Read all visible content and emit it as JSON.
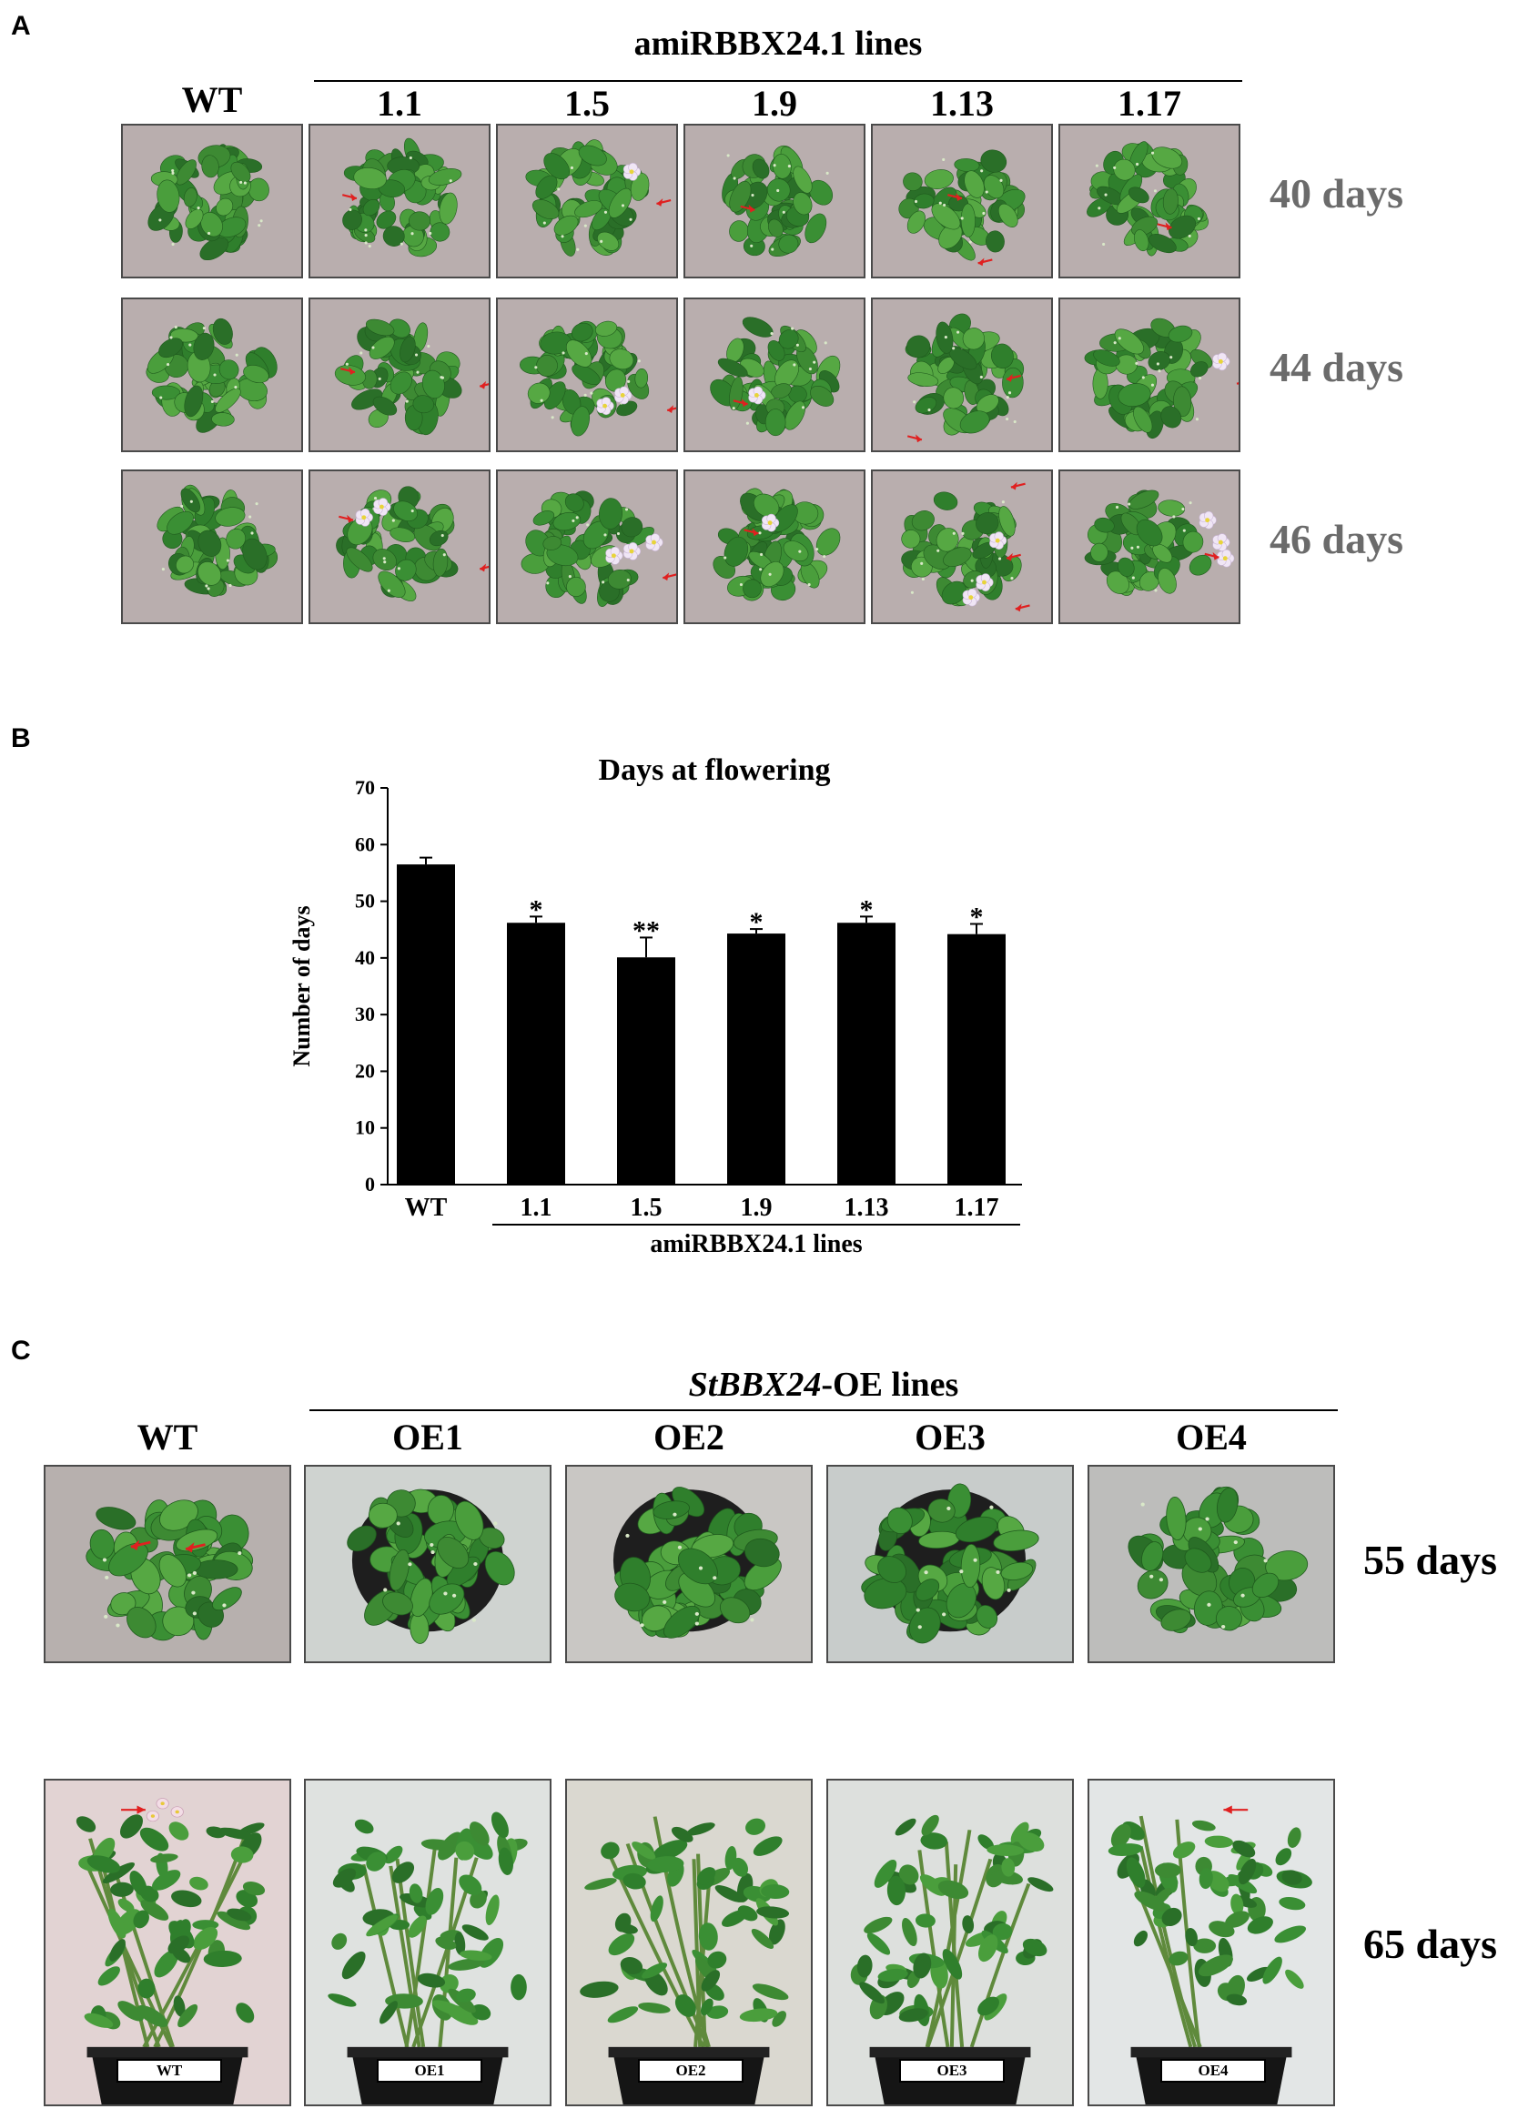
{
  "panel_a": {
    "letter": "A",
    "group_title": "amiRBBX24.1 lines",
    "columns": [
      "WT",
      "1.1",
      "1.5",
      "1.9",
      "1.13",
      "1.17"
    ],
    "row_labels": [
      "40 days",
      "44 days",
      "46 days"
    ]
  },
  "panel_b": {
    "letter": "B",
    "group_label": "amiRBBX24.1 lines"
  },
  "panel_c": {
    "letter": "C",
    "group_title_italic": "StBBX24",
    "group_title_rest": "-OE lines",
    "columns": [
      "WT",
      "OE1",
      "OE2",
      "OE3",
      "OE4"
    ],
    "row_labels": [
      "55 days",
      "65 days"
    ],
    "pot_labels": [
      "WT",
      "OE1",
      "OE2",
      "OE3",
      "OE4"
    ]
  },
  "chart_data": {
    "type": "bar",
    "title": "Days at flowering",
    "ylabel": "Number of days",
    "xlabel": "",
    "categories": [
      "WT",
      "1.1",
      "1.5",
      "1.9",
      "1.13",
      "1.17"
    ],
    "values": [
      56.5,
      46.2,
      40.1,
      44.3,
      46.2,
      44.2
    ],
    "errors": [
      1.2,
      1.1,
      3.5,
      0.8,
      1.1,
      1.8
    ],
    "significance": [
      "",
      "*",
      "**",
      "*",
      "*",
      "*"
    ],
    "ylim": [
      0,
      70
    ],
    "yticks": [
      0,
      10,
      20,
      30,
      40,
      50,
      60,
      70
    ],
    "bar_color": "#000000",
    "grid": false
  }
}
